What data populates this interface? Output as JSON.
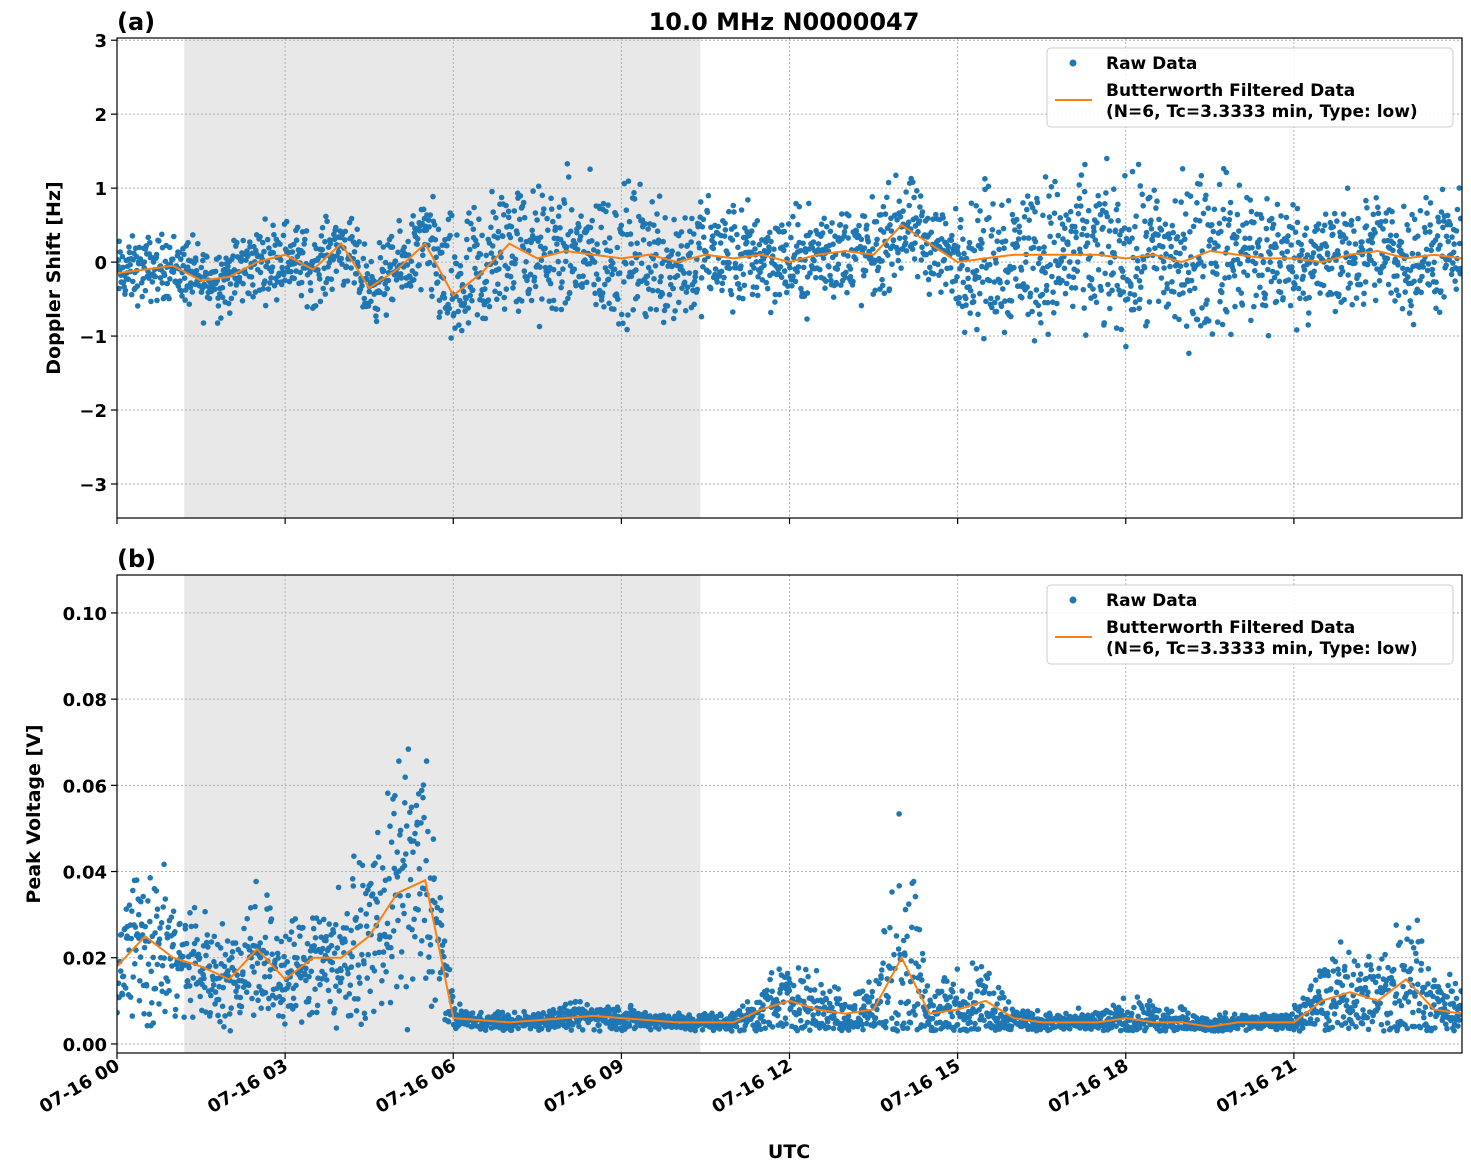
{
  "title": "10.0 MHz N0000047",
  "xlabel": "UTC",
  "colors": {
    "raw": "#1f77b4",
    "filtered": "#ff7f0e",
    "shade": "#e8e8e8",
    "grid": "#b0b0b0"
  },
  "shaded_interval_hours": [
    1.2,
    10.41
  ],
  "x_ticks": [
    {
      "hour": 0,
      "label": "07-16 00"
    },
    {
      "hour": 3,
      "label": "07-16 03"
    },
    {
      "hour": 6,
      "label": "07-16 06"
    },
    {
      "hour": 9,
      "label": "07-16 09"
    },
    {
      "hour": 12,
      "label": "07-16 12"
    },
    {
      "hour": 15,
      "label": "07-16 15"
    },
    {
      "hour": 18,
      "label": "07-16 18"
    },
    {
      "hour": 21,
      "label": "07-16 21"
    }
  ],
  "legend": {
    "raw": "Raw Data",
    "filtered_line1": "Butterworth Filtered Data",
    "filtered_line2": "(N=6, Tc=3.3333 min, Type: low)",
    "placement": "top-right"
  },
  "chart_data": [
    {
      "panel": "(a)",
      "type": "scatter+line",
      "ylabel": "Doppler Shift [Hz]",
      "xlim_hours": [
        0,
        24
      ],
      "ylim": [
        -3.46,
        3.03
      ],
      "grid": true,
      "y_ticks": [
        {
          "v": 3,
          "label": "3"
        },
        {
          "v": 2,
          "label": "2"
        },
        {
          "v": 1,
          "label": "1"
        },
        {
          "v": 0,
          "label": "0"
        },
        {
          "v": -1,
          "label": "−1"
        },
        {
          "v": -2,
          "label": "−2"
        },
        {
          "v": -3,
          "label": "−3"
        }
      ],
      "x_step_hours": 0.5,
      "filtered": [
        -0.15,
        -0.1,
        -0.05,
        -0.25,
        -0.2,
        0.0,
        0.1,
        -0.1,
        0.25,
        -0.35,
        -0.1,
        0.25,
        -0.45,
        -0.15,
        0.25,
        0.05,
        0.15,
        0.1,
        0.05,
        0.1,
        0.0,
        0.1,
        0.05,
        0.1,
        0.0,
        0.1,
        0.15,
        0.1,
        0.5,
        0.25,
        0.0,
        0.05,
        0.1,
        0.1,
        0.1,
        0.1,
        0.05,
        0.1,
        0.0,
        0.15,
        0.1,
        0.05,
        0.05,
        0.0,
        0.1,
        0.15,
        0.05,
        0.1,
        0.05
      ],
      "raw_spread": [
        0.4,
        0.4,
        0.4,
        0.45,
        0.45,
        0.45,
        0.45,
        0.45,
        0.45,
        0.45,
        0.45,
        0.6,
        0.9,
        0.9,
        0.85,
        0.85,
        0.85,
        0.85,
        0.85,
        0.85,
        0.85,
        0.7,
        0.7,
        0.6,
        0.6,
        0.6,
        0.6,
        0.6,
        0.6,
        0.6,
        0.6,
        0.95,
        0.95,
        0.95,
        0.95,
        0.95,
        0.95,
        0.95,
        1.0,
        1.0,
        0.95,
        0.95,
        0.7,
        0.7,
        0.7,
        0.7,
        0.7,
        0.7,
        0.7
      ]
    },
    {
      "panel": "(b)",
      "type": "scatter+line",
      "ylabel": "Peak Voltage [V]",
      "xlim_hours": [
        0,
        24
      ],
      "ylim": [
        -0.0021,
        0.1088
      ],
      "grid": true,
      "y_ticks": [
        {
          "v": 0,
          "label": "0.00"
        },
        {
          "v": 0.02,
          "label": "0.02"
        },
        {
          "v": 0.04,
          "label": "0.04"
        },
        {
          "v": 0.06,
          "label": "0.06"
        },
        {
          "v": 0.08,
          "label": "0.08"
        },
        {
          "v": 0.1,
          "label": "0.10"
        }
      ],
      "x_step_hours": 0.5,
      "filtered": [
        0.018,
        0.025,
        0.02,
        0.018,
        0.015,
        0.022,
        0.015,
        0.02,
        0.02,
        0.025,
        0.035,
        0.038,
        0.006,
        0.0055,
        0.005,
        0.0055,
        0.006,
        0.0065,
        0.006,
        0.0055,
        0.005,
        0.005,
        0.005,
        0.008,
        0.01,
        0.008,
        0.007,
        0.008,
        0.02,
        0.007,
        0.008,
        0.01,
        0.006,
        0.005,
        0.005,
        0.005,
        0.006,
        0.005,
        0.005,
        0.004,
        0.005,
        0.005,
        0.005,
        0.01,
        0.012,
        0.01,
        0.015,
        0.008,
        0.007
      ],
      "raw_spread": [
        0.012,
        0.02,
        0.014,
        0.012,
        0.01,
        0.015,
        0.012,
        0.014,
        0.014,
        0.016,
        0.025,
        0.03,
        0.003,
        0.002,
        0.002,
        0.002,
        0.003,
        0.003,
        0.003,
        0.002,
        0.002,
        0.002,
        0.002,
        0.006,
        0.008,
        0.007,
        0.006,
        0.006,
        0.03,
        0.006,
        0.008,
        0.008,
        0.003,
        0.002,
        0.002,
        0.003,
        0.004,
        0.004,
        0.003,
        0.002,
        0.002,
        0.002,
        0.003,
        0.008,
        0.01,
        0.009,
        0.02,
        0.007,
        0.006
      ]
    }
  ]
}
